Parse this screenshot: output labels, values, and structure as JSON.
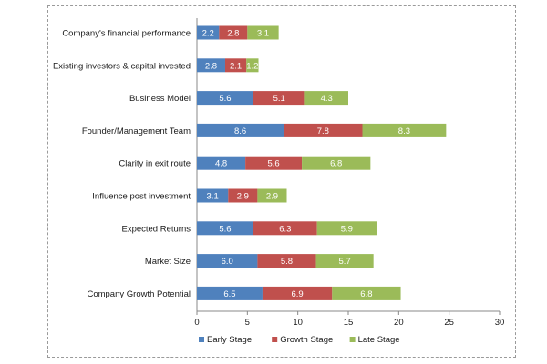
{
  "chart_data": {
    "type": "bar",
    "orientation": "horizontal",
    "stacked": true,
    "categories": [
      "Company's financial performance",
      "Existing investors & capital invested",
      "Business Model",
      "Founder/Management Team",
      "Clarity in exit route",
      "Influence post investment",
      "Expected Returns",
      "Market Size",
      "Company Growth Potential"
    ],
    "series": [
      {
        "name": "Early Stage",
        "color": "#4f81bd",
        "values": [
          2.2,
          2.8,
          5.6,
          8.6,
          4.8,
          3.1,
          5.6,
          6.0,
          6.5
        ],
        "labels": [
          "2.2",
          "2.8",
          "5.6",
          "8.6",
          "4.8",
          "3.1",
          "5.6",
          "6.0",
          "6.5"
        ]
      },
      {
        "name": "Growth Stage",
        "color": "#c0504d",
        "values": [
          2.8,
          2.1,
          5.1,
          7.8,
          5.6,
          2.9,
          6.3,
          5.8,
          6.9
        ],
        "labels": [
          "2.8",
          "2.1",
          "5.1",
          "7.8",
          "5.6",
          "2.9",
          "6.3",
          "5.8",
          "6.9"
        ]
      },
      {
        "name": "Late Stage",
        "color": "#9bbb59",
        "values": [
          3.1,
          1.2,
          4.3,
          8.3,
          6.8,
          2.9,
          5.9,
          5.7,
          6.8
        ],
        "labels": [
          "3.1",
          "1.2",
          "4.3",
          "8.3",
          "6.8",
          "2.9",
          "5.9",
          "5.7",
          "6.8"
        ]
      }
    ],
    "xlim": [
      0,
      30
    ],
    "xticks": [
      0,
      5,
      10,
      15,
      20,
      25,
      30
    ],
    "title": "",
    "xlabel": "",
    "ylabel": "",
    "legend_position": "bottom",
    "grid": false
  }
}
